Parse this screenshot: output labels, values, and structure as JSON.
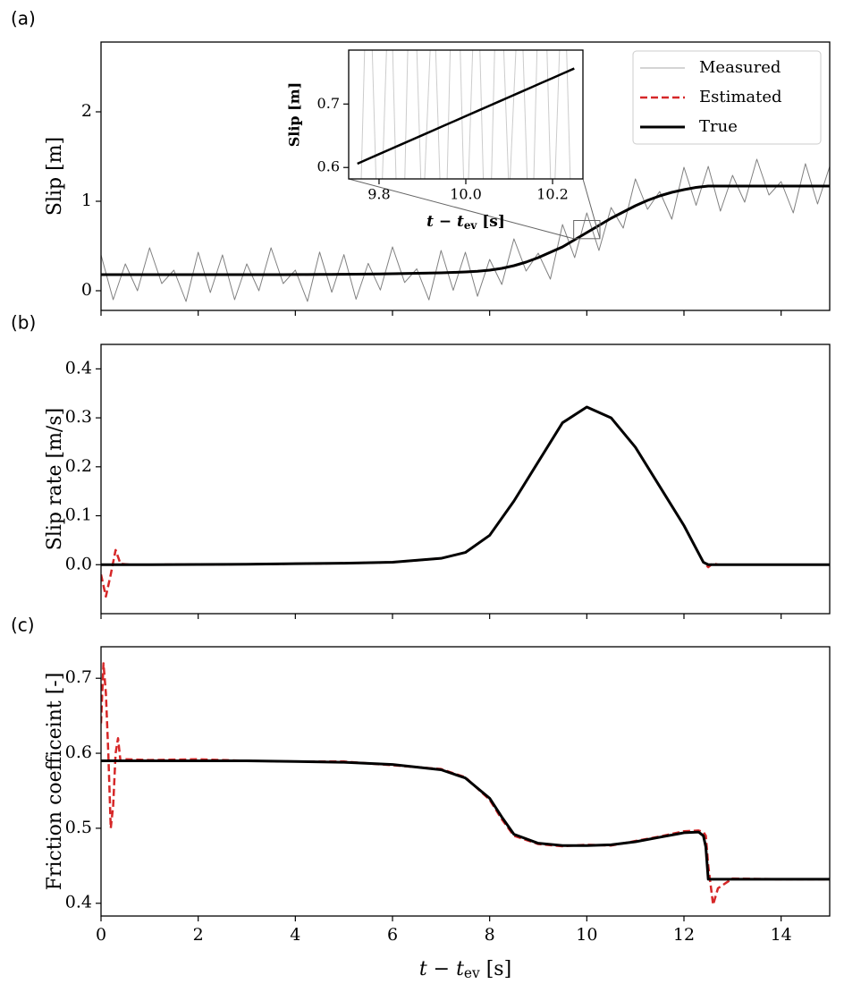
{
  "chart_data": [
    {
      "type": "line",
      "label": "(a)",
      "ylabel": "Slip [m]",
      "xlim": [
        0,
        15
      ],
      "ylim": [
        -0.22,
        2.78
      ],
      "xticks": [
        0,
        2,
        4,
        6,
        8,
        10,
        12,
        14
      ],
      "xtick_labels": false,
      "yticks": [
        0,
        1,
        2
      ],
      "legend": "upper right",
      "x": [
        0,
        0.25,
        0.5,
        0.75,
        1,
        1.25,
        1.5,
        1.75,
        2,
        2.25,
        2.5,
        2.75,
        3,
        3.25,
        3.5,
        3.75,
        4,
        4.25,
        4.5,
        4.75,
        5,
        5.25,
        5.5,
        5.75,
        6,
        6.25,
        6.5,
        6.75,
        7,
        7.25,
        7.5,
        7.75,
        8,
        8.25,
        8.5,
        8.75,
        9,
        9.25,
        9.5,
        9.75,
        10,
        10.25,
        10.5,
        10.75,
        11,
        11.25,
        11.5,
        11.75,
        12,
        12.25,
        12.5,
        12.75,
        13,
        13.25,
        13.5,
        13.75,
        14,
        14.25,
        14.5,
        14.75,
        15
      ],
      "series": [
        {
          "name": "Measured",
          "color": "#808080",
          "width": 1,
          "legend_color": "#aaaaaa",
          "values": [
            0.4,
            -0.1,
            0.3,
            0.0,
            0.48,
            0.08,
            0.23,
            -0.12,
            0.43,
            -0.02,
            0.4,
            -0.1,
            0.3,
            0.0,
            0.48,
            0.08,
            0.231,
            -0.119,
            0.432,
            -0.017,
            0.404,
            -0.095,
            0.306,
            0.008,
            0.49,
            0.092,
            0.245,
            -0.102,
            0.45,
            0.005,
            0.43,
            -0.062,
            0.35,
            0.07,
            0.58,
            0.22,
            0.42,
            0.13,
            0.74,
            0.37,
            0.87,
            0.45,
            0.93,
            0.7,
            1.25,
            0.91,
            1.11,
            0.8,
            1.38,
            0.955,
            1.39,
            0.89,
            1.29,
            0.99,
            1.47,
            1.07,
            1.22,
            0.87,
            1.42,
            0.97,
            1.39
          ]
        },
        {
          "name": "Estimated",
          "color": "#d62728",
          "width": 2.5,
          "dash": true,
          "values": [
            0.18,
            0.18,
            0.18,
            0.18,
            0.18,
            0.18,
            0.18,
            0.18,
            0.18,
            0.18,
            0.18,
            0.18,
            0.18,
            0.18,
            0.18,
            0.18,
            0.181,
            0.181,
            0.182,
            0.183,
            0.184,
            0.185,
            0.186,
            0.188,
            0.19,
            0.192,
            0.195,
            0.198,
            0.2,
            0.205,
            0.21,
            0.218,
            0.23,
            0.25,
            0.28,
            0.32,
            0.37,
            0.43,
            0.49,
            0.57,
            0.65,
            0.73,
            0.81,
            0.88,
            0.95,
            1.01,
            1.06,
            1.1,
            1.13,
            1.155,
            1.17,
            1.17,
            1.17,
            1.17,
            1.17,
            1.17,
            1.17,
            1.17,
            1.17,
            1.17,
            1.17
          ]
        },
        {
          "name": "True",
          "color": "#000000",
          "width": 3,
          "values": [
            0.18,
            0.18,
            0.18,
            0.18,
            0.18,
            0.18,
            0.18,
            0.18,
            0.18,
            0.18,
            0.18,
            0.18,
            0.18,
            0.18,
            0.18,
            0.18,
            0.181,
            0.181,
            0.182,
            0.183,
            0.184,
            0.185,
            0.186,
            0.188,
            0.19,
            0.192,
            0.195,
            0.198,
            0.2,
            0.205,
            0.21,
            0.218,
            0.23,
            0.25,
            0.28,
            0.32,
            0.37,
            0.43,
            0.49,
            0.57,
            0.65,
            0.73,
            0.81,
            0.88,
            0.95,
            1.01,
            1.06,
            1.1,
            1.13,
            1.155,
            1.17,
            1.17,
            1.17,
            1.17,
            1.17,
            1.17,
            1.17,
            1.17,
            1.17,
            1.17,
            1.17
          ]
        }
      ]
    },
    {
      "type": "line",
      "label": "(b)",
      "ylabel": "Slip rate [m/s]",
      "xlim": [
        0,
        15
      ],
      "ylim": [
        -0.1,
        0.45
      ],
      "xticks": [
        0,
        2,
        4,
        6,
        8,
        10,
        12,
        14
      ],
      "xtick_labels": false,
      "yticks": [
        {
          "value": 0,
          "label": "0.0"
        },
        0.1,
        0.2,
        0.3,
        0.4
      ],
      "x": [
        0,
        0.1,
        0.2,
        0.3,
        0.4,
        0.6,
        1,
        2,
        3,
        4,
        5,
        6,
        7,
        7.5,
        8,
        8.5,
        9,
        9.5,
        10,
        10.5,
        11,
        11.5,
        12,
        12.4,
        12.5,
        12.6,
        12.7,
        13,
        14,
        15
      ],
      "series": [
        {
          "name": "Estimated",
          "color": "#d62728",
          "width": 2.5,
          "dash": true,
          "values": [
            -0.02,
            -0.065,
            -0.02,
            0.03,
            0.002,
            0,
            0,
            0.0005,
            0.001,
            0.002,
            0.003,
            0.005,
            0.013,
            0.025,
            0.06,
            0.13,
            0.21,
            0.29,
            0.322,
            0.3,
            0.24,
            0.16,
            0.08,
            0.005,
            -0.005,
            0.003,
            0,
            0,
            0,
            0
          ]
        },
        {
          "name": "True",
          "color": "#000000",
          "width": 3,
          "values": [
            0,
            0,
            0,
            0,
            0,
            0,
            0,
            0.0005,
            0.001,
            0.002,
            0.003,
            0.005,
            0.013,
            0.025,
            0.06,
            0.13,
            0.21,
            0.29,
            0.322,
            0.3,
            0.24,
            0.16,
            0.08,
            0.005,
            0,
            0,
            0,
            0,
            0,
            0
          ]
        }
      ]
    },
    {
      "type": "line",
      "label": "(c)",
      "ylabel": "Friction coefficeint [-]",
      "xlabel": {
        "var": "t − t",
        "sub": "ev",
        "unit": " [s]"
      },
      "xlim": [
        0,
        15
      ],
      "ylim": [
        0.383,
        0.742
      ],
      "xticks": [
        0,
        2,
        4,
        6,
        8,
        10,
        12,
        14
      ],
      "yticks": [
        0.4,
        0.5,
        0.6,
        0.7
      ],
      "x": [
        0,
        0.05,
        0.1,
        0.15,
        0.2,
        0.25,
        0.3,
        0.35,
        0.4,
        0.5,
        1,
        2,
        3,
        4,
        5,
        6,
        7,
        7.5,
        8,
        8.25,
        8.5,
        9,
        9.5,
        10,
        10.5,
        11,
        11.5,
        12,
        12.3,
        12.4,
        12.45,
        12.5,
        12.6,
        12.7,
        13,
        14,
        15
      ],
      "series": [
        {
          "name": "Estimated",
          "color": "#d62728",
          "width": 2.5,
          "dash": true,
          "values": [
            0.64,
            0.72,
            0.68,
            0.6,
            0.5,
            0.53,
            0.6,
            0.62,
            0.59,
            0.592,
            0.591,
            0.592,
            0.59,
            0.589,
            0.589,
            0.584,
            0.579,
            0.568,
            0.538,
            0.512,
            0.49,
            0.479,
            0.476,
            0.478,
            0.477,
            0.483,
            0.489,
            0.496,
            0.497,
            0.495,
            0.49,
            0.45,
            0.398,
            0.42,
            0.433,
            0.432,
            0.432
          ]
        },
        {
          "name": "True",
          "color": "#000000",
          "width": 3,
          "values": [
            0.59,
            0.59,
            0.59,
            0.59,
            0.59,
            0.59,
            0.59,
            0.59,
            0.59,
            0.59,
            0.59,
            0.59,
            0.59,
            0.589,
            0.588,
            0.585,
            0.578,
            0.567,
            0.54,
            0.515,
            0.492,
            0.48,
            0.477,
            0.477,
            0.478,
            0.482,
            0.488,
            0.494,
            0.495,
            0.49,
            0.475,
            0.432,
            0.432,
            0.432,
            0.432,
            0.432,
            0.432
          ]
        }
      ]
    },
    {
      "type": "line",
      "ylabel": "Slip [m]",
      "xlabel": {
        "var": "t − t",
        "sub": "ev",
        "unit": " [s]"
      },
      "xlim": [
        9.73,
        10.27
      ],
      "ylim": [
        0.582,
        0.785
      ],
      "xticks": [
        9.8,
        {
          "value": 10,
          "label": "10.0"
        },
        10.2
      ],
      "yticks": [
        0.6,
        0.7
      ],
      "x": [
        9.75,
        9.775,
        9.8,
        9.825,
        9.85,
        9.875,
        9.9,
        9.925,
        9.95,
        9.975,
        10,
        10.025,
        10.05,
        10.075,
        10.1,
        10.125,
        10.15,
        10.175,
        10.2,
        10.225,
        10.25
      ],
      "series": [
        {
          "name": "Measured",
          "color": "#cccccc",
          "width": 1,
          "values": [
            0.35,
            1.0,
            0.42,
            0.95,
            0.3,
            1.05,
            0.5,
            0.9,
            0.38,
            1.1,
            0.45,
            0.98,
            0.33,
            1.02,
            0.55,
            0.93,
            0.4,
            1.08,
            0.47,
            0.96,
            0.36
          ]
        },
        {
          "name": "True",
          "color": "#000000",
          "width": 2.5,
          "values": [
            0.606,
            0.6135,
            0.621,
            0.6285,
            0.636,
            0.6435,
            0.651,
            0.6585,
            0.666,
            0.6735,
            0.681,
            0.6885,
            0.696,
            0.7035,
            0.711,
            0.7185,
            0.726,
            0.7335,
            0.741,
            0.7485,
            0.756
          ]
        }
      ]
    }
  ]
}
